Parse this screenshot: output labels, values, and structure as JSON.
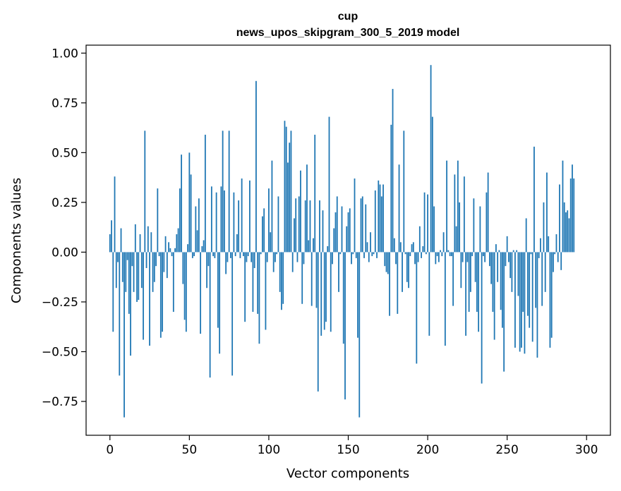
{
  "chart_data": {
    "type": "bar",
    "title": "cup",
    "subtitle": "news_upos_skipgram_300_5_2019 model",
    "xlabel": "Vector components",
    "ylabel": "Components values",
    "xlim": [
      -15,
      315
    ],
    "ylim": [
      -0.92,
      1.04
    ],
    "x_ticks": [
      0,
      50,
      100,
      150,
      200,
      250,
      300
    ],
    "x_tick_labels": [
      "0",
      "50",
      "100",
      "150",
      "200",
      "250",
      "300"
    ],
    "y_ticks": [
      1.0,
      0.75,
      0.5,
      0.25,
      0.0,
      -0.25,
      -0.5,
      -0.75
    ],
    "y_tick_labels": [
      "1.00",
      "0.75",
      "0.50",
      "0.25",
      "0.00",
      "−0.25",
      "−0.50",
      "−0.75"
    ],
    "grid": false,
    "bar_color": "#1f77b4",
    "values": [
      0.09,
      0.16,
      -0.4,
      0.38,
      -0.18,
      -0.05,
      -0.62,
      0.12,
      -0.15,
      -0.83,
      -0.2,
      -0.04,
      -0.31,
      -0.52,
      -0.07,
      -0.2,
      0.14,
      -0.25,
      -0.24,
      0.09,
      -0.18,
      -0.44,
      0.61,
      -0.08,
      0.13,
      -0.47,
      0.1,
      -0.2,
      -0.15,
      -0.07,
      0.32,
      -0.02,
      -0.43,
      -0.4,
      -0.1,
      0.08,
      -0.13,
      0.05,
      0.02,
      -0.02,
      -0.3,
      0.02,
      0.09,
      0.12,
      0.32,
      0.49,
      -0.16,
      -0.34,
      -0.4,
      0.04,
      0.5,
      0.39,
      -0.03,
      -0.02,
      0.23,
      0.11,
      0.27,
      -0.41,
      0.03,
      0.06,
      0.59,
      -0.18,
      -0.07,
      -0.63,
      0.33,
      -0.02,
      -0.03,
      0.3,
      -0.38,
      -0.51,
      0.33,
      0.61,
      0.31,
      -0.11,
      -0.05,
      0.61,
      -0.03,
      -0.62,
      0.3,
      -0.02,
      0.09,
      0.26,
      -0.03,
      0.37,
      -0.02,
      -0.35,
      -0.05,
      -0.02,
      0.36,
      -0.05,
      -0.3,
      -0.08,
      0.86,
      -0.31,
      -0.46,
      -0.01,
      0.18,
      0.22,
      -0.39,
      -0.05,
      0.32,
      0.1,
      0.46,
      -0.1,
      -0.05,
      -0.01,
      0.28,
      -0.2,
      -0.29,
      -0.26,
      0.66,
      0.63,
      0.45,
      0.55,
      0.61,
      -0.1,
      0.17,
      0.27,
      -0.05,
      0.28,
      0.41,
      -0.26,
      -0.06,
      0.26,
      0.44,
      0.06,
      0.26,
      -0.27,
      0.07,
      0.59,
      -0.28,
      -0.7,
      0.26,
      -0.42,
      0.21,
      -0.39,
      -0.35,
      0.03,
      0.68,
      -0.4,
      -0.06,
      0.12,
      0.2,
      0.28,
      -0.2,
      -0.01,
      0.23,
      -0.46,
      -0.74,
      0.13,
      0.2,
      0.22,
      -0.06,
      -0.01,
      0.37,
      -0.03,
      -0.43,
      -0.83,
      0.27,
      0.28,
      -0.03,
      0.24,
      0.05,
      -0.05,
      0.1,
      -0.02,
      -0.01,
      0.31,
      -0.03,
      0.36,
      0.34,
      0.28,
      0.34,
      -0.07,
      -0.1,
      -0.11,
      -0.32,
      0.64,
      0.82,
      0.07,
      -0.06,
      -0.31,
      0.44,
      0.05,
      -0.2,
      0.61,
      -0.01,
      -0.15,
      -0.18,
      -0.02,
      0.04,
      0.05,
      -0.06,
      -0.56,
      -0.05,
      0.13,
      -0.03,
      0.03,
      0.3,
      -0.01,
      0.29,
      -0.42,
      0.94,
      0.68,
      0.23,
      -0.06,
      -0.02,
      -0.05,
      0.01,
      -0.02,
      0.1,
      -0.47,
      0.46,
      0.01,
      -0.02,
      -0.02,
      -0.27,
      0.39,
      0.13,
      0.46,
      0.25,
      -0.18,
      -0.05,
      0.38,
      -0.42,
      -0.05,
      -0.3,
      -0.2,
      -0.02,
      0.27,
      -0.15,
      -0.3,
      -0.4,
      0.23,
      -0.66,
      -0.02,
      -0.05,
      0.3,
      0.4,
      -0.07,
      -0.16,
      -0.3,
      -0.44,
      0.04,
      -0.15,
      0.01,
      -0.29,
      -0.38,
      -0.6,
      -0.07,
      0.08,
      -0.05,
      -0.13,
      -0.2,
      0.01,
      -0.48,
      0.01,
      -0.22,
      -0.5,
      -0.48,
      -0.3,
      -0.51,
      0.17,
      -0.32,
      -0.38,
      -0.01,
      -0.45,
      0.53,
      -0.28,
      -0.53,
      -0.03,
      0.07,
      -0.27,
      0.25,
      -0.2,
      0.4,
      0.08,
      -0.48,
      -0.43,
      -0.1,
      -0.01,
      0.09,
      -0.05,
      0.34,
      -0.09,
      0.46,
      0.25,
      0.2,
      0.21,
      0.17,
      0.37,
      0.44,
      0.37
    ]
  }
}
